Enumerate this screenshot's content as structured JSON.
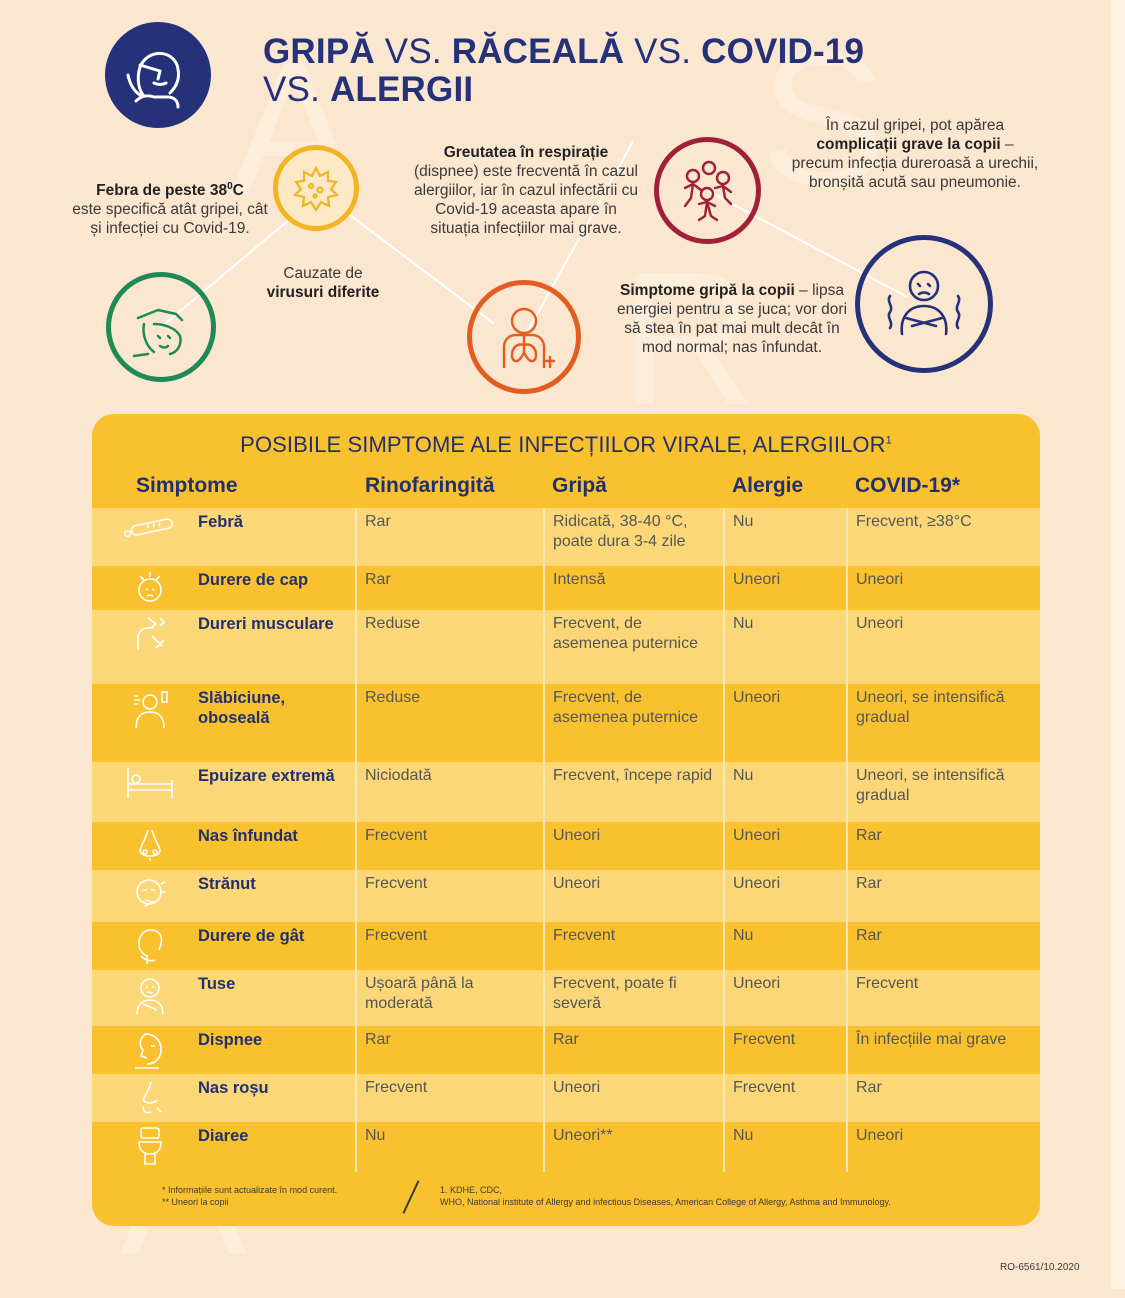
{
  "title": {
    "w1": "GRIPĂ",
    "vs1": " VS. ",
    "w2": "RĂCEALĂ",
    "vs2": " VS. ",
    "w3": "COVID-19",
    "vs3": "VS. ",
    "w4": "ALERGII"
  },
  "infos": {
    "fever": {
      "bold": "Febra de peste 38",
      "sup": "0",
      "bold_end": "C",
      "rest": "este specifică atât gripei, cât și infecției cu Covid-19."
    },
    "viruses": {
      "line1": "Cauzate de",
      "bold": "virusuri diferite"
    },
    "dyspnea": {
      "bold": "Greutatea în respirație",
      "rest": "(dispnee) este frecventă în cazul alergiilor, iar în cazul infectării cu Covid-19 aceasta apare în situația infecțiilor mai grave."
    },
    "complications": {
      "pre": "În cazul gripei, pot apărea",
      "bold": "complicații grave la copii",
      "post": " – precum infecția dureroasă a urechii, bronșită acută sau pneumonie."
    },
    "children": {
      "bold": "Simptome gripă la copii",
      "post": " – lipsa energiei pentru a se juca; vor dori să stea în pat mai mult decât în mod normal; nas înfundat."
    }
  },
  "table": {
    "title": "POSIBILE SIMPTOME ALE INFECȚIILOR VIRALE, ALERGIILOR",
    "title_sup": "1",
    "headers": [
      "Simptome",
      "Rinofaringită",
      "Gripă",
      "Alergie",
      "COVID-19*"
    ],
    "rows": [
      {
        "icon": "thermometer-icon",
        "symptom": "Febră",
        "rino": "Rar",
        "gripa": "Ridicată, 38-40 °C, poate dura 3-4 zile",
        "alergie": "Nu",
        "covid": "Frecvent, ≥38°C"
      },
      {
        "icon": "headache-icon",
        "symptom": "Durere de cap",
        "rino": "Rar",
        "gripa": "Intensă",
        "alergie": "Uneori",
        "covid": "Uneori"
      },
      {
        "icon": "muscle-pain-icon",
        "symptom": "Dureri musculare",
        "rino": "Reduse",
        "gripa": "Frecvent, de asemenea puternice",
        "alergie": "Nu",
        "covid": "Uneori"
      },
      {
        "icon": "weakness-icon",
        "symptom": "Slăbiciune, oboseală",
        "rino": "Reduse",
        "gripa": "Frecvent, de asemenea puternice",
        "alergie": "Uneori",
        "covid": "Uneori, se intensifică gradual"
      },
      {
        "icon": "bed-icon",
        "symptom": "Epuizare extremă",
        "rino": "Niciodată",
        "gripa": "Frecvent, începe rapid",
        "alergie": "Nu",
        "covid": "Uneori, se intensifică gradual"
      },
      {
        "icon": "nose-icon",
        "symptom": "Nas înfundat",
        "rino": "Frecvent",
        "gripa": "Uneori",
        "alergie": "Uneori",
        "covid": "Rar"
      },
      {
        "icon": "sneeze-icon",
        "symptom": "Strănut",
        "rino": "Frecvent",
        "gripa": "Uneori",
        "alergie": "Uneori",
        "covid": "Rar"
      },
      {
        "icon": "sore-throat-icon",
        "symptom": "Durere de gât",
        "rino": "Frecvent",
        "gripa": "Frecvent",
        "alergie": "Nu",
        "covid": "Rar"
      },
      {
        "icon": "cough-icon",
        "symptom": "Tuse",
        "rino": "Ușoară până la moderată",
        "gripa": "Frecvent, poate fi severă",
        "alergie": "Uneori",
        "covid": "Frecvent"
      },
      {
        "icon": "dyspnea-icon",
        "symptom": "Dispnee",
        "rino": "Rar",
        "gripa": "Rar",
        "alergie": "Frecvent",
        "covid": "În infecțiile mai grave"
      },
      {
        "icon": "red-nose-icon",
        "symptom": "Nas roșu",
        "rino": "Frecvent",
        "gripa": "Uneori",
        "alergie": "Frecvent",
        "covid": "Rar"
      },
      {
        "icon": "toilet-icon",
        "symptom": "Diaree",
        "rino": "Nu",
        "gripa": "Uneori**",
        "alergie": "Nu",
        "covid": "Uneori"
      }
    ],
    "footnotes": {
      "star1": "* Informațiile sunt actualizate în mod curent.",
      "star2": "** Uneori la copii",
      "ref1": "1. KDHE, CDC,",
      "ref2": "WHO, National institute of Allergy and infectious Diseases, American College of Allergy, Asthma and Immunology."
    }
  },
  "doc_code": "RO-6561/10.2020",
  "colors": {
    "navy": "#25327a",
    "yellow": "#f9c12e",
    "green": "#1f8a55",
    "orange": "#e35d23",
    "red": "#a02038",
    "background": "#fbe6cf"
  }
}
